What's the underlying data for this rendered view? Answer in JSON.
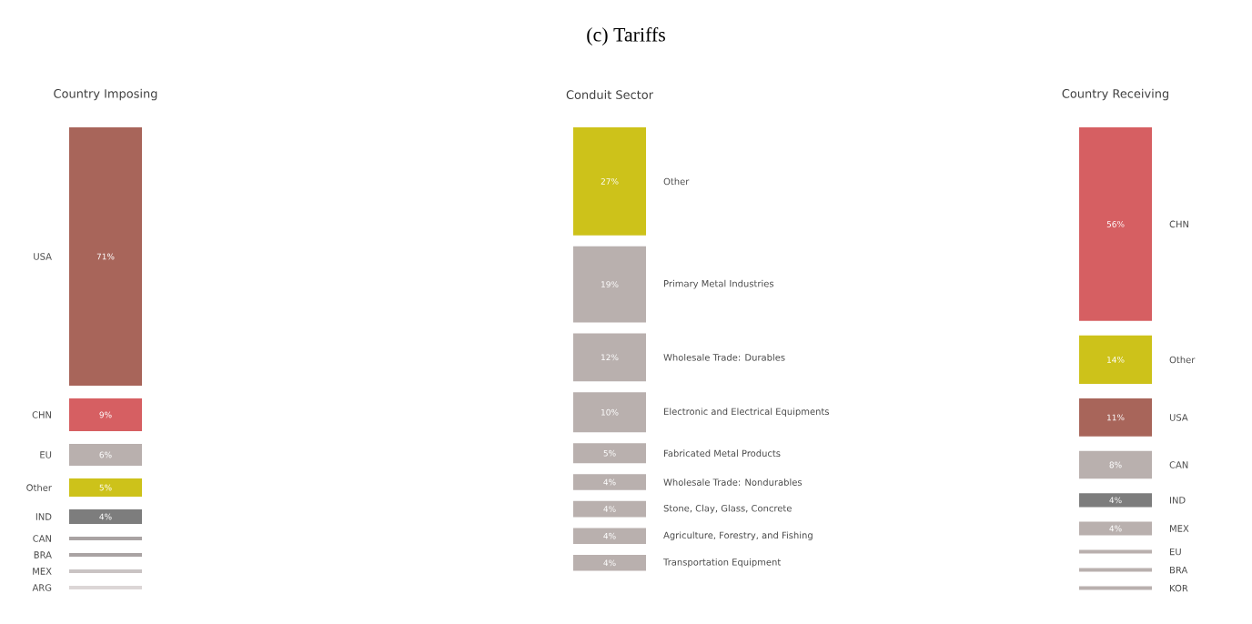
{
  "chart_data": [
    {
      "type": "other",
      "title": "(c) Tariffs"
    },
    {
      "type": "other",
      "title": "Country Imposing",
      "categories": [
        "USA",
        "CHN",
        "EU",
        "Other",
        "IND",
        "CAN",
        "BRA",
        "MEX",
        "ARG"
      ],
      "values": [
        71,
        9,
        6,
        5,
        4,
        null,
        null,
        null,
        null
      ],
      "value_labels": [
        "71%",
        "9%",
        "6%",
        "5%",
        "4%",
        null,
        null,
        null,
        null
      ],
      "colors": [
        "#a8655a",
        "#d65f62",
        "#b9b0ae",
        "#cdc21a",
        "#7d7d7d",
        "#a9a3a3",
        "#a9a3a3",
        "#c9c3c3",
        "#dcd6d6"
      ]
    },
    {
      "type": "other",
      "title": "Conduit Sector",
      "categories": [
        "Other",
        "Primary Metal Industries",
        "Wholesale Trade: Durables",
        "Electronic and Electrical Equipments",
        "Fabricated Metal Products",
        "Wholesale Trade: Nondurables",
        "Stone, Clay, Glass, Concrete",
        "Agriculture, Forestry, and Fishing",
        "Transportation Equipment"
      ],
      "values": [
        27,
        19,
        12,
        10,
        5,
        4,
        4,
        4,
        4
      ],
      "value_labels": [
        "27%",
        "19%",
        "12%",
        "10%",
        "5%",
        "4%",
        "4%",
        "4%",
        "4%"
      ],
      "colors": [
        "#cdc21a",
        "#b9b0ae",
        "#b9b0ae",
        "#b9b0ae",
        "#b9b0ae",
        "#b9b0ae",
        "#b9b0ae",
        "#b9b0ae",
        "#b9b0ae"
      ]
    },
    {
      "type": "other",
      "title": "Country Receiving",
      "categories": [
        "CHN",
        "Other",
        "USA",
        "CAN",
        "IND",
        "MEX",
        "EU",
        "BRA",
        "KOR"
      ],
      "values": [
        56,
        14,
        11,
        8,
        4,
        4,
        null,
        null,
        null
      ],
      "value_labels": [
        "56%",
        "14%",
        "11%",
        "8%",
        "4%",
        "4%",
        null,
        null,
        null
      ],
      "colors": [
        "#d65f62",
        "#cdc21a",
        "#a8655a",
        "#b9b0ae",
        "#7d7d7d",
        "#b9b0ae",
        "#b9b0ae",
        "#b9b0ae",
        "#b9b0ae"
      ]
    }
  ]
}
